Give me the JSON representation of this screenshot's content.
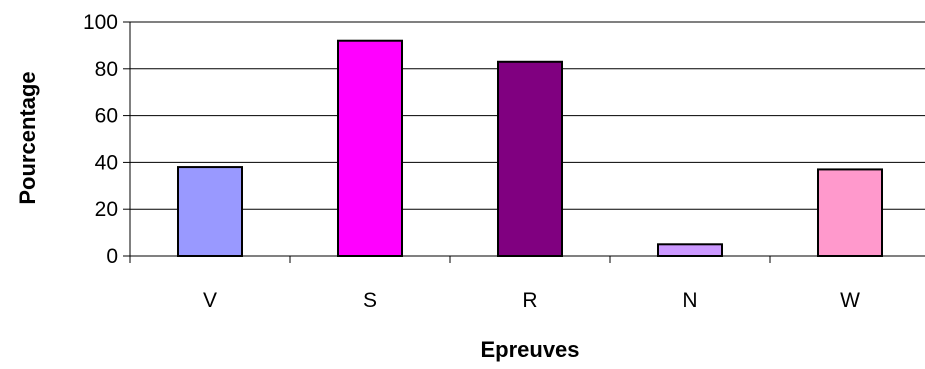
{
  "chart_data": {
    "type": "bar",
    "title": "",
    "xlabel": "Epreuves",
    "ylabel": "Pourcentage",
    "categories": [
      "V",
      "S",
      "R",
      "N",
      "W"
    ],
    "values": [
      38,
      92,
      83,
      5,
      37
    ],
    "colors": [
      "#9999FF",
      "#FF00FF",
      "#800080",
      "#CC99FF",
      "#FF99CC"
    ],
    "ylim": [
      0,
      100
    ],
    "yticks": [
      0,
      20,
      40,
      60,
      80,
      100
    ],
    "ytick_labels": [
      "0",
      "20",
      "40",
      "60",
      "80",
      "100"
    ],
    "grid": "horizontal major gridlines",
    "legend": "none"
  }
}
